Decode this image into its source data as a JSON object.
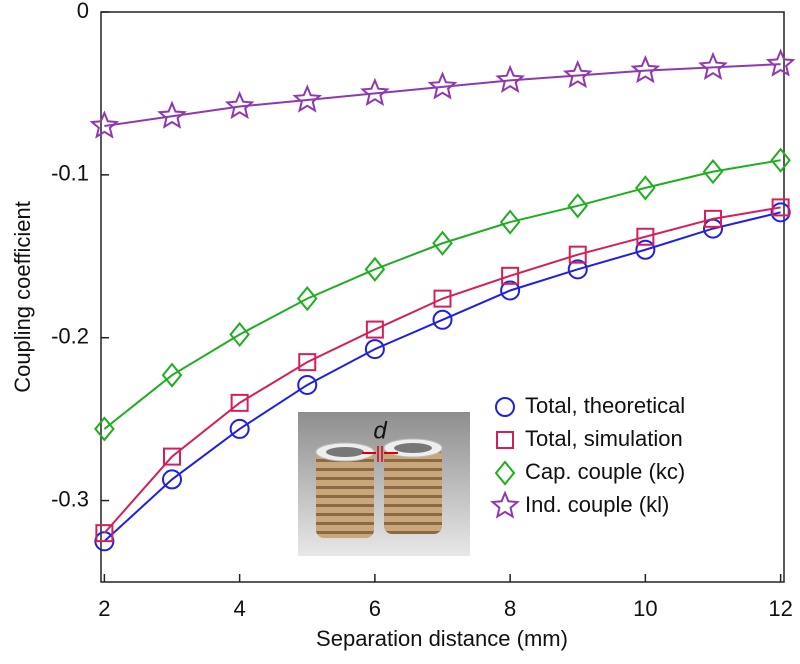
{
  "chart_data": {
    "type": "line",
    "x_label": "Separation distance (mm)",
    "y_label": "Coupling coefficient",
    "x": [
      2,
      3,
      4,
      5,
      6,
      7,
      8,
      9,
      10,
      11,
      12
    ],
    "xlim": [
      1.95,
      12.05
    ],
    "xticks": [
      2,
      4,
      6,
      8,
      10,
      12
    ],
    "ylim": [
      -0.35,
      0
    ],
    "yticks": [
      0,
      -0.1,
      -0.2,
      -0.3
    ],
    "legend": "lower right",
    "inset_label": "d",
    "series": [
      {
        "name": "Total, theoretical",
        "color": "#1f1fe6",
        "marker": "circle",
        "values": [
          -0.325,
          -0.287,
          -0.256,
          -0.229,
          -0.207,
          -0.189,
          -0.171,
          -0.158,
          -0.146,
          -0.133,
          -0.123
        ]
      },
      {
        "name": "Total, simulation",
        "color": "#d4205a",
        "marker": "square",
        "values": [
          -0.32,
          -0.273,
          -0.24,
          -0.215,
          -0.195,
          -0.176,
          -0.162,
          -0.149,
          -0.138,
          -0.127,
          -0.12
        ]
      },
      {
        "name": "Cap. couple (kc)",
        "color": "#1fae1f",
        "marker": "diamond",
        "values": [
          -0.256,
          -0.223,
          -0.198,
          -0.176,
          -0.158,
          -0.142,
          -0.129,
          -0.119,
          -0.108,
          -0.098,
          -0.091
        ]
      },
      {
        "name": "Ind. couple (kl)",
        "color": "#9038b0",
        "marker": "star",
        "values": [
          -0.07,
          -0.064,
          -0.058,
          -0.054,
          -0.05,
          -0.046,
          -0.042,
          -0.039,
          -0.036,
          -0.034,
          -0.032
        ]
      }
    ]
  }
}
